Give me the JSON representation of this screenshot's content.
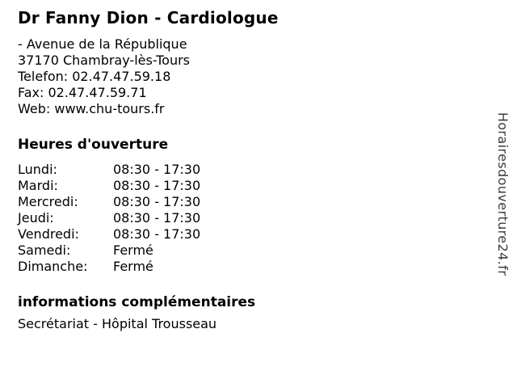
{
  "header": {
    "title": "Dr Fanny Dion - Cardiologue"
  },
  "contact": {
    "address_street": "- Avenue de la République",
    "address_city": "37170 Chambray-lès-Tours",
    "phone": "Telefon: 02.47.47.59.18",
    "fax": "Fax: 02.47.47.59.71",
    "web": "Web: www.chu-tours.fr"
  },
  "hours": {
    "heading": "Heures d'ouverture",
    "rows": [
      {
        "day": "Lundi:",
        "time": "08:30 - 17:30"
      },
      {
        "day": "Mardi:",
        "time": "08:30 - 17:30"
      },
      {
        "day": "Mercredi:",
        "time": "08:30 - 17:30"
      },
      {
        "day": "Jeudi:",
        "time": "08:30 - 17:30"
      },
      {
        "day": "Vendredi:",
        "time": "08:30 - 17:30"
      },
      {
        "day": "Samedi:",
        "time": "Fermé"
      },
      {
        "day": "Dimanche:",
        "time": "Fermé"
      }
    ]
  },
  "info": {
    "heading": "informations complémentaires",
    "text": "Secrétariat - Hôpital Trousseau"
  },
  "watermark": {
    "text": "Horairesdouverture24.fr"
  },
  "colors": {
    "background": "#ffffff",
    "text": "#000000",
    "watermark": "#3c3c3c"
  }
}
